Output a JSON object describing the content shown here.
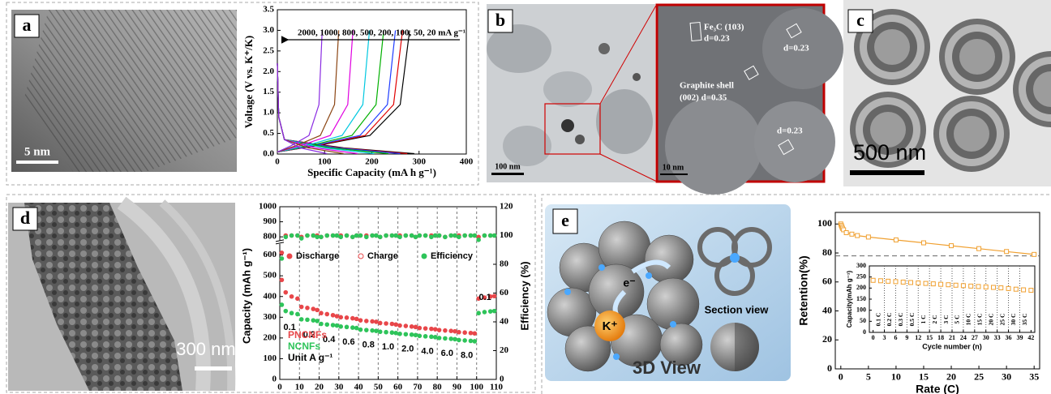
{
  "panel_labels": [
    "a",
    "b",
    "c",
    "d",
    "e"
  ],
  "images": {
    "a": {
      "scale_bar": "5 nm"
    },
    "b": {
      "scale_bar": "100 nm",
      "zoom_scale_bar": "10 nm",
      "notes": [
        "Fe₃C (103)",
        "d=0.23",
        "d=0.23",
        "Graphite shell",
        "(002) d=0.35",
        "d=0.23"
      ]
    },
    "c": {
      "scale_bar": "500 nm"
    },
    "d": {
      "scale_bar": "300 nm"
    },
    "e": {
      "electron": "e⁻",
      "ion": "K⁺",
      "section_view": "Section view",
      "view_3d": "3D View"
    }
  },
  "chart_data": [
    {
      "type": "line",
      "annotation": "2000, 1000, 800, 500, 200, 100, 50, 20 mA g⁻¹",
      "xlabel": "Specific Capacity (mA h g⁻¹)",
      "ylabel": "Voltage (V vs. K⁺/K)",
      "xlim": [
        0,
        400
      ],
      "xticks": [
        0,
        100,
        200,
        300,
        400
      ],
      "ylim": [
        0,
        3.5
      ],
      "yticks": [
        {
          "value": 0,
          "label": "0.0"
        },
        0.5,
        {
          "value": 1,
          "label": "1.0"
        },
        1.5,
        {
          "value": 2,
          "label": "2.0"
        },
        2.5,
        {
          "value": 3,
          "label": "3.0"
        },
        3.5
      ],
      "series": [
        {
          "color": "#000000",
          "x": [
            0,
            3,
            15,
            140,
            290,
            null,
            0,
            84,
            196,
            260,
            280
          ],
          "values": [
            2.2,
            0.9,
            0.35,
            0.15,
            0.01,
            null,
            0.05,
            0.2,
            0.45,
            1.2,
            3.0
          ]
        },
        {
          "color": "#e00000",
          "x": [
            0,
            3,
            15,
            132,
            275,
            null,
            0,
            80,
            186,
            246,
            265
          ],
          "values": [
            2.2,
            0.9,
            0.35,
            0.15,
            0.01,
            null,
            0.05,
            0.2,
            0.45,
            1.2,
            3.0
          ]
        },
        {
          "color": "#1f3cff",
          "x": [
            0,
            3,
            15,
            125,
            260,
            null,
            0,
            75,
            175,
            233,
            250
          ],
          "values": [
            2.2,
            0.9,
            0.35,
            0.15,
            0.01,
            null,
            0.05,
            0.2,
            0.45,
            1.2,
            3.0
          ]
        },
        {
          "color": "#00b000",
          "x": [
            0,
            3,
            15,
            112,
            235,
            null,
            0,
            68,
            158,
            209,
            225
          ],
          "values": [
            2.2,
            0.9,
            0.35,
            0.15,
            0.01,
            null,
            0.05,
            0.2,
            0.45,
            1.2,
            3.0
          ]
        },
        {
          "color": "#00c8e0",
          "x": [
            0,
            3,
            15,
            98,
            205,
            null,
            0,
            59,
            137,
            181,
            195
          ],
          "values": [
            2.2,
            0.9,
            0.35,
            0.15,
            0.01,
            null,
            0.05,
            0.2,
            0.45,
            1.2,
            3.0
          ]
        },
        {
          "color": "#e000e0",
          "x": [
            0,
            3,
            15,
            80,
            170,
            null,
            0,
            48,
            112,
            149,
            160
          ],
          "values": [
            2.2,
            0.9,
            0.35,
            0.15,
            0.01,
            null,
            0.05,
            0.2,
            0.45,
            1.2,
            3.0
          ]
        },
        {
          "color": "#8b4513",
          "x": [
            0,
            3,
            15,
            65,
            140,
            null,
            0,
            39,
            91,
            121,
            130
          ],
          "values": [
            2.2,
            0.9,
            0.35,
            0.15,
            0.01,
            null,
            0.05,
            0.2,
            0.45,
            1.2,
            3.0
          ]
        },
        {
          "color": "#8a2be2",
          "x": [
            0,
            3,
            15,
            48,
            105,
            null,
            0,
            29,
            67,
            88,
            95
          ],
          "values": [
            2.2,
            0.9,
            0.35,
            0.15,
            0.01,
            null,
            0.05,
            0.2,
            0.45,
            1.2,
            3.0
          ]
        }
      ]
    },
    {
      "type": "line",
      "ylabel": "Capacity (mAh g⁻¹)",
      "y2label": "Efficiency (%)",
      "xlim": [
        0,
        110
      ],
      "xticks": [
        0,
        10,
        20,
        30,
        40,
        50,
        60,
        70,
        80,
        90,
        100,
        110
      ],
      "ylim": [
        0,
        1000
      ],
      "yticks": [
        0,
        100,
        200,
        300,
        400,
        500,
        600,
        800,
        900,
        1000
      ],
      "axis_break": [
        650,
        780
      ],
      "y2lim": [
        0,
        120
      ],
      "y2ticks": [
        0,
        20,
        40,
        60,
        80,
        100,
        120
      ],
      "x": [
        1,
        3,
        6,
        9,
        11,
        14,
        17,
        19,
        21,
        24,
        27,
        29,
        31,
        34,
        37,
        39,
        41,
        44,
        47,
        49,
        51,
        54,
        57,
        59,
        61,
        64,
        67,
        69,
        71,
        74,
        77,
        79,
        81,
        84,
        87,
        89,
        91,
        94,
        97,
        99,
        101,
        104,
        107,
        109
      ],
      "series": [
        {
          "name": "PNCNFs",
          "color": "#e8474a",
          "values": [
            480,
            420,
            400,
            390,
            350,
            345,
            340,
            335,
            320,
            315,
            310,
            305,
            300,
            298,
            295,
            292,
            285,
            282,
            280,
            278,
            272,
            270,
            268,
            265,
            260,
            258,
            255,
            253,
            248,
            246,
            244,
            242,
            238,
            236,
            234,
            232,
            228,
            226,
            224,
            222,
            390,
            395,
            400,
            402
          ]
        },
        {
          "name": "NCNFs",
          "color": "#2ec45a",
          "values": [
            360,
            330,
            320,
            315,
            290,
            288,
            285,
            282,
            268,
            265,
            262,
            260,
            255,
            253,
            250,
            248,
            240,
            238,
            236,
            234,
            230,
            228,
            226,
            224,
            220,
            218,
            216,
            214,
            210,
            208,
            206,
            204,
            200,
            198,
            196,
            194,
            190,
            188,
            186,
            184,
            320,
            325,
            328,
            330
          ]
        },
        {
          "color": "#e8474a",
          "axis": "y2",
          "values": [
            88,
            100,
            100,
            100,
            99,
            100,
            100,
            100,
            99,
            100,
            100,
            100,
            100,
            100,
            99,
            100,
            100,
            100,
            100,
            100,
            99,
            100,
            100,
            100,
            100,
            100,
            100,
            99,
            100,
            100,
            100,
            100,
            100,
            99,
            100,
            100,
            100,
            100,
            100,
            100,
            99,
            100,
            100,
            100
          ]
        },
        {
          "color": "#2ec45a",
          "axis": "y2",
          "values": [
            84,
            99,
            100,
            100,
            98,
            100,
            100,
            99,
            99,
            100,
            100,
            100,
            99,
            100,
            99,
            100,
            100,
            99,
            100,
            100,
            99,
            100,
            100,
            100,
            99,
            100,
            100,
            99,
            100,
            100,
            99,
            100,
            100,
            99,
            100,
            100,
            99,
            100,
            100,
            100,
            97,
            100,
            100,
            100
          ]
        }
      ],
      "legend": [
        "Discharge",
        "Charge",
        "Efficiency"
      ],
      "rate_labels": [
        "0.1",
        "0.2",
        "0.4",
        "0.6",
        "0.8",
        "1.0",
        "2.0",
        "4.0",
        "6.0",
        "8.0",
        "0.1"
      ],
      "unit_label": "Unit A g⁻¹"
    },
    {
      "type": "line",
      "xlabel": "Rate (C)",
      "ylabel": "Retention(%)",
      "xlim": [
        -1,
        36
      ],
      "xticks": [
        0,
        5,
        10,
        15,
        20,
        25,
        30,
        35
      ],
      "ylim": [
        0,
        108
      ],
      "yticks": [
        0,
        20,
        40,
        60,
        80,
        100
      ],
      "reference_line": 78,
      "x": [
        0,
        0.1,
        0.2,
        0.3,
        0.5,
        1,
        2,
        3,
        5,
        10,
        15,
        20,
        25,
        30,
        35
      ],
      "series": [
        {
          "color": "#f0a030",
          "values": [
            100,
            99,
            98,
            97,
            96,
            94,
            93,
            92,
            91,
            89,
            87,
            85,
            83,
            81,
            79
          ]
        }
      ]
    },
    {
      "type": "line",
      "xlabel": "Cycle number (n)",
      "ylabel": "Capacity(mAh g⁻¹)",
      "xlim": [
        -1,
        43
      ],
      "xticks": [
        0,
        3,
        6,
        9,
        12,
        15,
        18,
        21,
        24,
        27,
        30,
        33,
        36,
        39,
        42
      ],
      "ylim": [
        0,
        300
      ],
      "yticks": [
        0,
        50,
        100,
        150,
        200,
        250,
        300
      ],
      "x": [
        0,
        2,
        4,
        6,
        8,
        10,
        12,
        14,
        16,
        18,
        20,
        22,
        24,
        26,
        28,
        30,
        32,
        34,
        36,
        38,
        40,
        42
      ],
      "series": [
        {
          "color": "#f0a030",
          "values": [
            235,
            233,
            231,
            229,
            227,
            225,
            223,
            221,
            219,
            217,
            215,
            213,
            211,
            209,
            207,
            205,
            203,
            201,
            198,
            195,
            192,
            190
          ]
        }
      ],
      "section_labels": [
        "0.1 C",
        "0.2 C",
        "0.3 C",
        "0.5 C",
        "1 C",
        "2 C",
        "3 C",
        "5 C",
        "10 C",
        "15 C",
        "20 C",
        "25 C",
        "30 C",
        "35 C"
      ]
    }
  ]
}
